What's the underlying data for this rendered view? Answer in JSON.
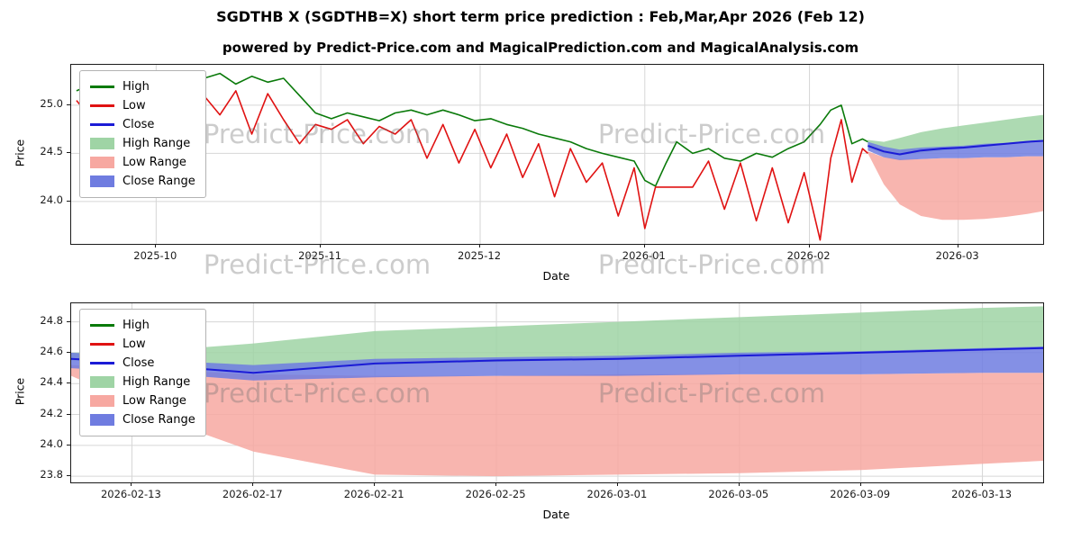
{
  "title": "SGDTHB X (SGDTHB=X) short term price prediction : Feb,Mar,Apr 2026 (Feb 12)",
  "subtitle": "powered by Predict-Price.com and MagicalPrediction.com and MagicalAnalysis.com",
  "watermark": "Predict-Price.com",
  "colors": {
    "high_line": "#0a7a0a",
    "low_line": "#e01212",
    "close_line": "#1b1bd6",
    "high_band": "#9fd4a5",
    "low_band": "#f7a8a1",
    "close_band": "#6f7ce0",
    "grid": "#d6d6d6"
  },
  "legend": {
    "items": [
      {
        "label": "High"
      },
      {
        "label": "Low"
      },
      {
        "label": "Close"
      },
      {
        "label": "High Range"
      },
      {
        "label": "Low Range"
      },
      {
        "label": "Close Range"
      }
    ]
  },
  "chart_data": [
    {
      "type": "line",
      "ylabel": "Price",
      "xlabel": "Date",
      "grid": true,
      "legend_position": "upper left",
      "xlim": [
        0,
        183
      ],
      "ylim": [
        23.56,
        25.42
      ],
      "xticks": [
        {
          "v": 16,
          "label": "2025-10"
        },
        {
          "v": 47,
          "label": "2025-11"
        },
        {
          "v": 77,
          "label": "2025-12"
        },
        {
          "v": 108,
          "label": "2026-01"
        },
        {
          "v": 139,
          "label": "2026-02"
        },
        {
          "v": 167,
          "label": "2026-03"
        }
      ],
      "yticks": [
        {
          "v": 24.0,
          "label": "24.0"
        },
        {
          "v": 24.5,
          "label": "24.5"
        },
        {
          "v": 25.0,
          "label": "25.0"
        }
      ],
      "series": {
        "high": {
          "x": [
            1,
            4,
            7,
            10,
            13,
            16,
            19,
            22,
            25,
            28,
            31,
            34,
            37,
            40,
            43,
            46,
            49,
            52,
            55,
            58,
            61,
            64,
            67,
            70,
            73,
            76,
            79,
            82,
            85,
            88,
            91,
            94,
            97,
            100,
            103,
            106,
            108,
            110,
            112,
            114,
            117,
            120,
            123,
            126,
            129,
            132,
            135,
            138,
            141,
            143,
            145,
            147,
            149,
            150
          ],
          "y": [
            25.15,
            25.22,
            25.1,
            25.18,
            25.08,
            25.2,
            25.12,
            25.08,
            25.28,
            25.33,
            25.22,
            25.3,
            25.24,
            25.28,
            25.1,
            24.92,
            24.86,
            24.92,
            24.88,
            24.84,
            24.92,
            24.95,
            24.9,
            24.95,
            24.9,
            24.84,
            24.86,
            24.8,
            24.76,
            24.7,
            24.66,
            24.62,
            24.55,
            24.5,
            24.46,
            24.42,
            24.22,
            24.16,
            24.4,
            24.62,
            24.5,
            24.55,
            24.45,
            24.42,
            24.5,
            24.46,
            24.55,
            24.62,
            24.8,
            24.95,
            25.0,
            24.6,
            24.65,
            24.62
          ]
        },
        "low": {
          "x": [
            1,
            4,
            7,
            10,
            13,
            16,
            19,
            22,
            25,
            28,
            31,
            34,
            37,
            40,
            43,
            46,
            49,
            52,
            55,
            58,
            61,
            64,
            67,
            70,
            73,
            76,
            79,
            82,
            85,
            88,
            91,
            94,
            97,
            100,
            103,
            106,
            108,
            110,
            112,
            114,
            117,
            120,
            123,
            126,
            129,
            132,
            135,
            138,
            141,
            143,
            145,
            147,
            149,
            150
          ],
          "y": [
            25.05,
            24.85,
            25.0,
            24.7,
            25.02,
            24.55,
            25.0,
            24.85,
            25.1,
            24.9,
            25.15,
            24.7,
            25.12,
            24.85,
            24.6,
            24.8,
            24.75,
            24.85,
            24.6,
            24.78,
            24.7,
            24.85,
            24.45,
            24.8,
            24.4,
            24.75,
            24.35,
            24.7,
            24.25,
            24.6,
            24.05,
            24.55,
            24.2,
            24.4,
            23.85,
            24.35,
            23.72,
            24.15,
            24.15,
            24.15,
            24.15,
            24.42,
            23.92,
            24.4,
            23.8,
            24.35,
            23.78,
            24.3,
            23.6,
            24.45,
            24.85,
            24.2,
            24.55,
            24.5
          ]
        },
        "close": {
          "x": [
            150,
            153,
            156,
            160,
            164,
            168,
            172,
            176,
            180,
            183
          ],
          "y": [
            24.58,
            24.52,
            24.49,
            24.53,
            24.55,
            24.56,
            24.58,
            24.6,
            24.62,
            24.63
          ]
        },
        "high_range": {
          "x": [
            150,
            153,
            156,
            160,
            164,
            168,
            172,
            176,
            180,
            183
          ],
          "upper": [
            24.64,
            24.62,
            24.66,
            24.72,
            24.76,
            24.79,
            24.82,
            24.85,
            24.88,
            24.9
          ],
          "lower": [
            24.56,
            24.5,
            24.48,
            24.51,
            24.53,
            24.55,
            24.57,
            24.59,
            24.61,
            24.62
          ]
        },
        "low_range": {
          "x": [
            150,
            153,
            156,
            160,
            164,
            168,
            172,
            176,
            180,
            183
          ],
          "upper": [
            24.52,
            24.46,
            24.44,
            24.44,
            24.45,
            24.45,
            24.46,
            24.46,
            24.47,
            24.47
          ],
          "lower": [
            24.5,
            24.18,
            23.97,
            23.85,
            23.81,
            23.81,
            23.82,
            23.84,
            23.87,
            23.9
          ]
        },
        "close_range": {
          "x": [
            150,
            153,
            156,
            160,
            164,
            168,
            172,
            176,
            180,
            183
          ],
          "upper": [
            24.62,
            24.57,
            24.54,
            24.56,
            24.57,
            24.58,
            24.6,
            24.61,
            24.63,
            24.64
          ],
          "lower": [
            24.53,
            24.46,
            24.43,
            24.44,
            24.45,
            24.45,
            24.46,
            24.46,
            24.47,
            24.47
          ]
        }
      }
    },
    {
      "type": "line",
      "ylabel": "Price",
      "xlabel": "Date",
      "grid": true,
      "legend_position": "upper left",
      "xlim": [
        0,
        32
      ],
      "ylim": [
        23.76,
        24.92
      ],
      "xticks": [
        {
          "v": 2,
          "label": "2026-02-13"
        },
        {
          "v": 6,
          "label": "2026-02-17"
        },
        {
          "v": 10,
          "label": "2026-02-21"
        },
        {
          "v": 14,
          "label": "2026-02-25"
        },
        {
          "v": 18,
          "label": "2026-03-01"
        },
        {
          "v": 22,
          "label": "2026-03-05"
        },
        {
          "v": 26,
          "label": "2026-03-09"
        },
        {
          "v": 30,
          "label": "2026-03-13"
        }
      ],
      "yticks": [
        {
          "v": 23.8,
          "label": "23.8"
        },
        {
          "v": 24.0,
          "label": "24.0"
        },
        {
          "v": 24.2,
          "label": "24.2"
        },
        {
          "v": 24.4,
          "label": "24.4"
        },
        {
          "v": 24.6,
          "label": "24.6"
        },
        {
          "v": 24.8,
          "label": "24.8"
        }
      ],
      "series": {
        "close": {
          "x": [
            0,
            2,
            4,
            6,
            10,
            14,
            18,
            22,
            26,
            30,
            32
          ],
          "y": [
            24.56,
            24.54,
            24.5,
            24.47,
            24.53,
            24.55,
            24.56,
            24.58,
            24.6,
            24.62,
            24.63
          ]
        },
        "high_range": {
          "x": [
            0,
            2,
            4,
            6,
            10,
            14,
            18,
            22,
            26,
            30,
            32
          ],
          "upper": [
            24.6,
            24.61,
            24.63,
            24.66,
            24.74,
            24.77,
            24.8,
            24.83,
            24.86,
            24.89,
            24.9
          ],
          "lower": [
            24.55,
            24.53,
            24.5,
            24.48,
            24.52,
            24.54,
            24.56,
            24.58,
            24.6,
            24.62,
            24.63
          ]
        },
        "low_range": {
          "x": [
            0,
            2,
            4,
            6,
            10,
            14,
            18,
            22,
            26,
            30,
            32
          ],
          "upper": [
            24.52,
            24.5,
            24.48,
            24.46,
            24.45,
            24.45,
            24.46,
            24.46,
            24.46,
            24.47,
            24.47
          ],
          "lower": [
            24.45,
            24.28,
            24.1,
            23.96,
            23.81,
            23.8,
            23.81,
            23.82,
            23.84,
            23.88,
            23.9
          ]
        },
        "close_range": {
          "x": [
            0,
            2,
            4,
            6,
            10,
            14,
            18,
            22,
            26,
            30,
            32
          ],
          "upper": [
            24.6,
            24.58,
            24.54,
            24.52,
            24.56,
            24.57,
            24.58,
            24.6,
            24.61,
            24.63,
            24.64
          ],
          "lower": [
            24.5,
            24.48,
            24.45,
            24.42,
            24.44,
            24.45,
            24.45,
            24.46,
            24.46,
            24.47,
            24.47
          ]
        }
      }
    }
  ]
}
